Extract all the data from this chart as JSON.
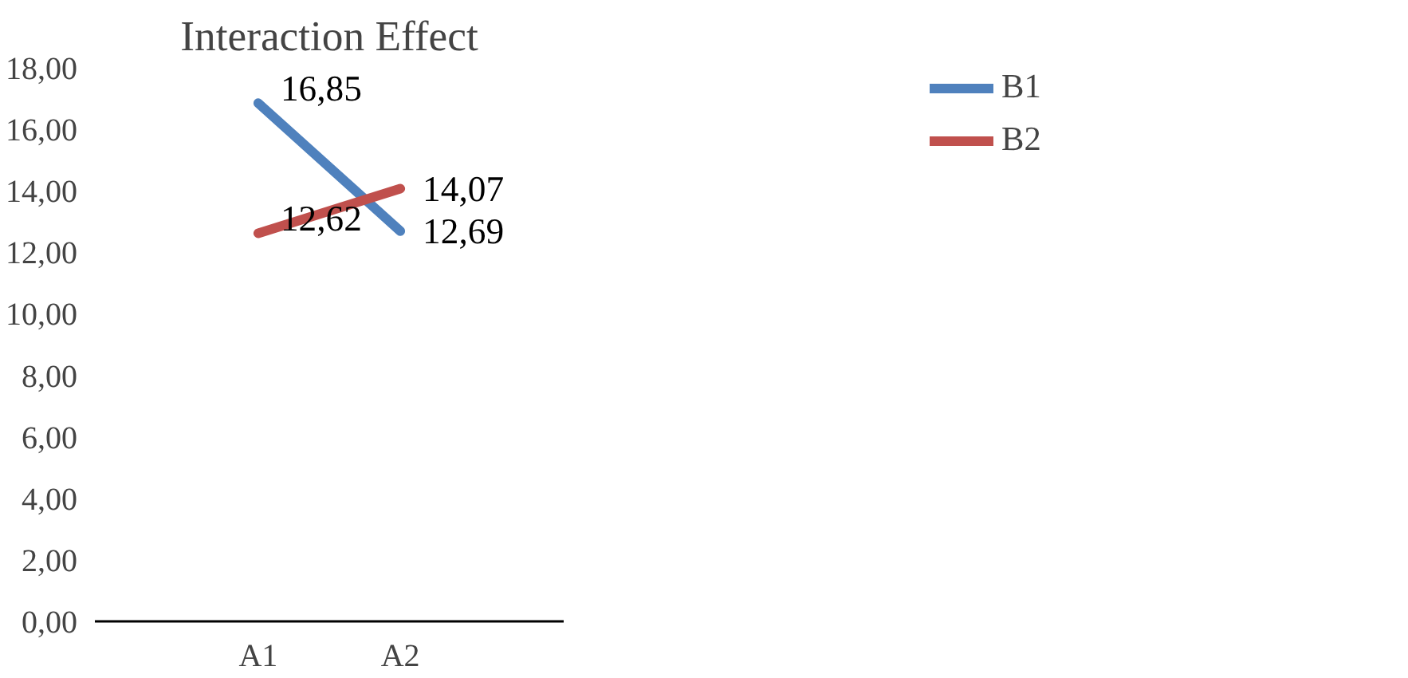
{
  "chart_data": {
    "type": "line",
    "title": "Interaction Effect",
    "categories": [
      "A1",
      "A2"
    ],
    "series": [
      {
        "name": "B1",
        "color": "#4f81bd",
        "values": [
          16.85,
          12.69
        ],
        "value_labels": [
          "16,85",
          "12,69"
        ]
      },
      {
        "name": "B2",
        "color": "#c0504d",
        "values": [
          12.62,
          14.07
        ],
        "value_labels": [
          "12,62",
          "14,07"
        ]
      }
    ],
    "ylim": [
      0,
      18
    ],
    "yticks": [
      {
        "value": 0,
        "label": "0,00"
      },
      {
        "value": 2,
        "label": "2,00"
      },
      {
        "value": 4,
        "label": "4,00"
      },
      {
        "value": 6,
        "label": "6,00"
      },
      {
        "value": 8,
        "label": "8,00"
      },
      {
        "value": 10,
        "label": "10,00"
      },
      {
        "value": 12,
        "label": "12,00"
      },
      {
        "value": 14,
        "label": "14,00"
      },
      {
        "value": 16,
        "label": "16,00"
      },
      {
        "value": 18,
        "label": "18,00"
      }
    ],
    "grid": false,
    "legend": "top right",
    "marker": "none",
    "line_style": "solid"
  }
}
